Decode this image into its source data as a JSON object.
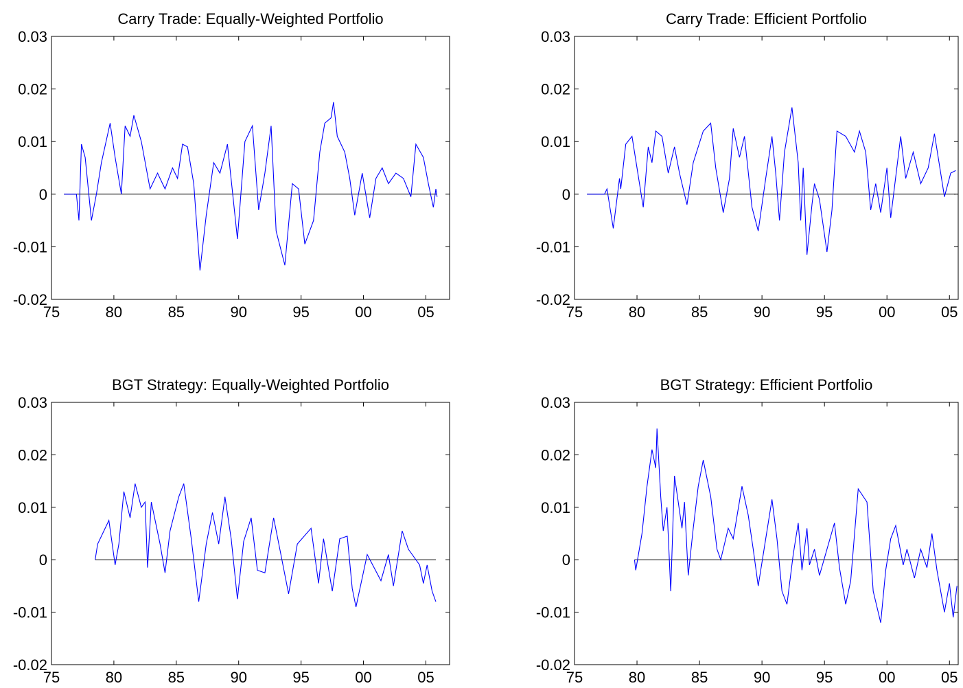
{
  "chart_data": [
    {
      "type": "line",
      "title": "Carry Trade: Equally-Weighted Portfolio",
      "color": "#0000ff",
      "x": [
        1976.0,
        1977.0,
        1977.2,
        1977.4,
        1977.7,
        1978.2,
        1978.6,
        1979.0,
        1979.7,
        1980.1,
        1980.6,
        1980.9,
        1981.3,
        1981.6,
        1982.2,
        1982.9,
        1983.5,
        1984.1,
        1984.7,
        1985.1,
        1985.5,
        1985.9,
        1986.4,
        1986.9,
        1987.4,
        1988.0,
        1988.5,
        1989.1,
        1989.9,
        1990.5,
        1991.1,
        1991.6,
        1992.1,
        1992.6,
        1993.0,
        1993.7,
        1994.3,
        1994.8,
        1995.3,
        1996.0,
        1996.5,
        1996.9,
        1997.4,
        1997.6,
        1997.9,
        1998.5,
        1998.9,
        1999.3,
        1999.9,
        2000.5,
        2001.0,
        2001.5,
        2002.0,
        2002.6,
        2003.2,
        2003.8,
        2004.2,
        2004.8,
        2005.2,
        2005.6,
        2005.8,
        2005.9
      ],
      "values": [
        0,
        0,
        -0.005,
        0.0095,
        0.007,
        -0.005,
        0,
        0.006,
        0.0135,
        0.007,
        0,
        0.013,
        0.011,
        0.015,
        0.01,
        0.001,
        0.004,
        0.001,
        0.005,
        0.003,
        0.0095,
        0.009,
        0.002,
        -0.0145,
        -0.004,
        0.006,
        0.004,
        0.0095,
        -0.0085,
        0.01,
        0.013,
        -0.003,
        0.004,
        0.013,
        -0.007,
        -0.0135,
        0.002,
        0.001,
        -0.0095,
        -0.005,
        0.008,
        0.0135,
        0.0145,
        0.0175,
        0.011,
        0.008,
        0.003,
        -0.004,
        0.004,
        -0.0045,
        0.003,
        0.005,
        0.002,
        0.004,
        0.003,
        -0.0005,
        0.0095,
        0.007,
        0.002,
        -0.0025,
        0.001,
        -0.0005
      ],
      "xlim": [
        1975,
        2006.9
      ],
      "ylim": [
        -0.02,
        0.03
      ],
      "xticks": [
        {
          "value": 1975,
          "label": "75"
        },
        {
          "value": 1980,
          "label": "80"
        },
        {
          "value": 1985,
          "label": "85"
        },
        {
          "value": 1990,
          "label": "90"
        },
        {
          "value": 1995,
          "label": "95"
        },
        {
          "value": 2000,
          "label": "00"
        },
        {
          "value": 2005,
          "label": "05"
        }
      ],
      "yticks": [
        -0.02,
        -0.01,
        0,
        0.01,
        0.02,
        0.03
      ]
    },
    {
      "type": "line",
      "title": "Carry Trade: Efficient Portfolio",
      "color": "#0000ff",
      "x": [
        1976.0,
        1977.4,
        1977.6,
        1978.1,
        1978.6,
        1978.7,
        1979.1,
        1979.6,
        1980.0,
        1980.5,
        1980.9,
        1981.2,
        1981.5,
        1982.0,
        1982.5,
        1983.0,
        1983.4,
        1984.0,
        1984.5,
        1985.3,
        1985.9,
        1986.3,
        1986.9,
        1987.4,
        1987.7,
        1988.2,
        1988.6,
        1989.2,
        1989.7,
        1990.3,
        1990.8,
        1991.1,
        1991.4,
        1991.8,
        1992.4,
        1992.9,
        1993.1,
        1993.3,
        1993.6,
        1994.0,
        1994.2,
        1994.6,
        1995.2,
        1995.6,
        1996.0,
        1996.7,
        1997.4,
        1997.8,
        1998.3,
        1998.7,
        1999.1,
        1999.5,
        2000.0,
        2000.3,
        2001.1,
        2001.5,
        2002.1,
        2002.7,
        2003.3,
        2003.8,
        2004.3,
        2004.6,
        2005.1,
        2005.5
      ],
      "values": [
        0,
        0,
        0.001,
        -0.0065,
        0.003,
        0.001,
        0.0095,
        0.011,
        0.005,
        -0.0025,
        0.009,
        0.006,
        0.012,
        0.011,
        0.004,
        0.009,
        0.004,
        -0.002,
        0.006,
        0.012,
        0.0135,
        0.005,
        -0.0035,
        0.003,
        0.0125,
        0.007,
        0.011,
        -0.0025,
        -0.007,
        0.003,
        0.011,
        0.004,
        -0.005,
        0.008,
        0.0165,
        0.006,
        -0.005,
        0.005,
        -0.0115,
        -0.002,
        0.002,
        -0.001,
        -0.011,
        -0.003,
        0.012,
        0.011,
        0.008,
        0.012,
        0.008,
        -0.003,
        0.002,
        -0.0035,
        0.005,
        -0.0045,
        0.011,
        0.003,
        0.008,
        0.002,
        0.005,
        0.0115,
        0.004,
        -0.0005,
        0.004,
        0.0045
      ],
      "xlim": [
        1975,
        2005.7
      ],
      "ylim": [
        -0.02,
        0.03
      ],
      "xticks": [
        {
          "value": 1975,
          "label": "75"
        },
        {
          "value": 1980,
          "label": "80"
        },
        {
          "value": 1985,
          "label": "85"
        },
        {
          "value": 1990,
          "label": "90"
        },
        {
          "value": 1995,
          "label": "95"
        },
        {
          "value": 2000,
          "label": "00"
        },
        {
          "value": 2005,
          "label": "05"
        }
      ],
      "yticks": [
        -0.02,
        -0.01,
        0,
        0.01,
        0.02,
        0.03
      ]
    },
    {
      "type": "line",
      "title": "BGT Strategy: Equally-Weighted Portfolio",
      "color": "#0000ff",
      "x": [
        1978.5,
        1978.7,
        1979.1,
        1979.6,
        1980.1,
        1980.4,
        1980.8,
        1981.3,
        1981.7,
        1982.2,
        1982.5,
        1982.7,
        1983.0,
        1983.7,
        1984.1,
        1984.5,
        1985.2,
        1985.6,
        1986.2,
        1986.6,
        1986.8,
        1987.4,
        1987.9,
        1988.4,
        1988.9,
        1989.4,
        1989.9,
        1990.4,
        1991.0,
        1991.5,
        1992.1,
        1992.8,
        1993.3,
        1994.0,
        1994.7,
        1995.8,
        1996.4,
        1996.8,
        1997.5,
        1998.1,
        1998.7,
        1999.1,
        1999.4,
        2000.3,
        2001.4,
        2002.0,
        2002.4,
        2003.1,
        2003.6,
        2004.5,
        2004.8,
        2005.1,
        2005.5,
        2005.8
      ],
      "values": [
        0,
        0.003,
        0.005,
        0.0075,
        -0.001,
        0.003,
        0.013,
        0.008,
        0.0145,
        0.01,
        0.011,
        -0.0015,
        0.011,
        0.003,
        -0.0025,
        0.0055,
        0.012,
        0.0145,
        0.004,
        -0.004,
        -0.008,
        0.003,
        0.009,
        0.003,
        0.012,
        0.004,
        -0.0075,
        0.0035,
        0.008,
        -0.002,
        -0.0025,
        0.008,
        0.002,
        -0.0065,
        0.003,
        0.006,
        -0.0045,
        0.004,
        -0.006,
        0.004,
        0.0045,
        -0.0055,
        -0.009,
        0.001,
        -0.004,
        0.001,
        -0.005,
        0.0055,
        0.002,
        -0.001,
        -0.0045,
        -0.001,
        -0.006,
        -0.008
      ],
      "xlim": [
        1975,
        2006.9
      ],
      "ylim": [
        -0.02,
        0.03
      ],
      "xticks": [
        {
          "value": 1975,
          "label": "75"
        },
        {
          "value": 1980,
          "label": "80"
        },
        {
          "value": 1985,
          "label": "85"
        },
        {
          "value": 1990,
          "label": "90"
        },
        {
          "value": 1995,
          "label": "95"
        },
        {
          "value": 2000,
          "label": "00"
        },
        {
          "value": 2005,
          "label": "05"
        }
      ],
      "yticks": [
        -0.02,
        -0.01,
        0,
        0.01,
        0.02,
        0.03
      ]
    },
    {
      "type": "line",
      "title": "BGT Strategy: Efficient Portfolio",
      "color": "#0000ff",
      "x": [
        1979.8,
        1979.9,
        1980.4,
        1980.8,
        1981.2,
        1981.5,
        1981.6,
        1981.9,
        1982.1,
        1982.4,
        1982.7,
        1983.0,
        1983.6,
        1983.8,
        1984.1,
        1984.5,
        1984.9,
        1985.3,
        1985.9,
        1986.4,
        1986.7,
        1987.3,
        1987.7,
        1988.4,
        1988.9,
        1989.3,
        1989.7,
        1990.3,
        1990.8,
        1991.2,
        1991.6,
        1992.0,
        1992.5,
        1992.9,
        1993.2,
        1993.6,
        1993.8,
        1994.2,
        1994.6,
        1995.8,
        1996.2,
        1996.7,
        1997.1,
        1997.7,
        1998.4,
        1998.9,
        1999.5,
        1999.9,
        2000.3,
        2000.7,
        2001.3,
        2001.6,
        2002.2,
        2002.7,
        2003.2,
        2003.6,
        2004.0,
        2004.6,
        2005.0,
        2005.3,
        2005.6
      ],
      "values": [
        0,
        -0.002,
        0.005,
        0.014,
        0.021,
        0.0175,
        0.025,
        0.012,
        0.0055,
        0.01,
        -0.006,
        0.016,
        0.006,
        0.011,
        -0.003,
        0.006,
        0.014,
        0.019,
        0.012,
        0.002,
        0,
        0.006,
        0.004,
        0.014,
        0.0085,
        0.002,
        -0.005,
        0.004,
        0.0115,
        0.004,
        -0.006,
        -0.0085,
        0.001,
        0.007,
        -0.002,
        0.006,
        -0.001,
        0.002,
        -0.003,
        0.007,
        -0.0015,
        -0.0085,
        -0.004,
        0.0135,
        0.011,
        -0.006,
        -0.012,
        -0.002,
        0.004,
        0.0065,
        -0.001,
        0.002,
        -0.0035,
        0.002,
        -0.0015,
        0.005,
        -0.002,
        -0.01,
        -0.0045,
        -0.011,
        -0.005
      ],
      "xlim": [
        1975,
        2005.7
      ],
      "ylim": [
        -0.02,
        0.03
      ],
      "xticks": [
        {
          "value": 1975,
          "label": "75"
        },
        {
          "value": 1980,
          "label": "80"
        },
        {
          "value": 1985,
          "label": "85"
        },
        {
          "value": 1990,
          "label": "90"
        },
        {
          "value": 1995,
          "label": "95"
        },
        {
          "value": 2000,
          "label": "00"
        },
        {
          "value": 2005,
          "label": "05"
        }
      ],
      "yticks": [
        -0.02,
        -0.01,
        0,
        0.01,
        0.02,
        0.03
      ]
    }
  ]
}
